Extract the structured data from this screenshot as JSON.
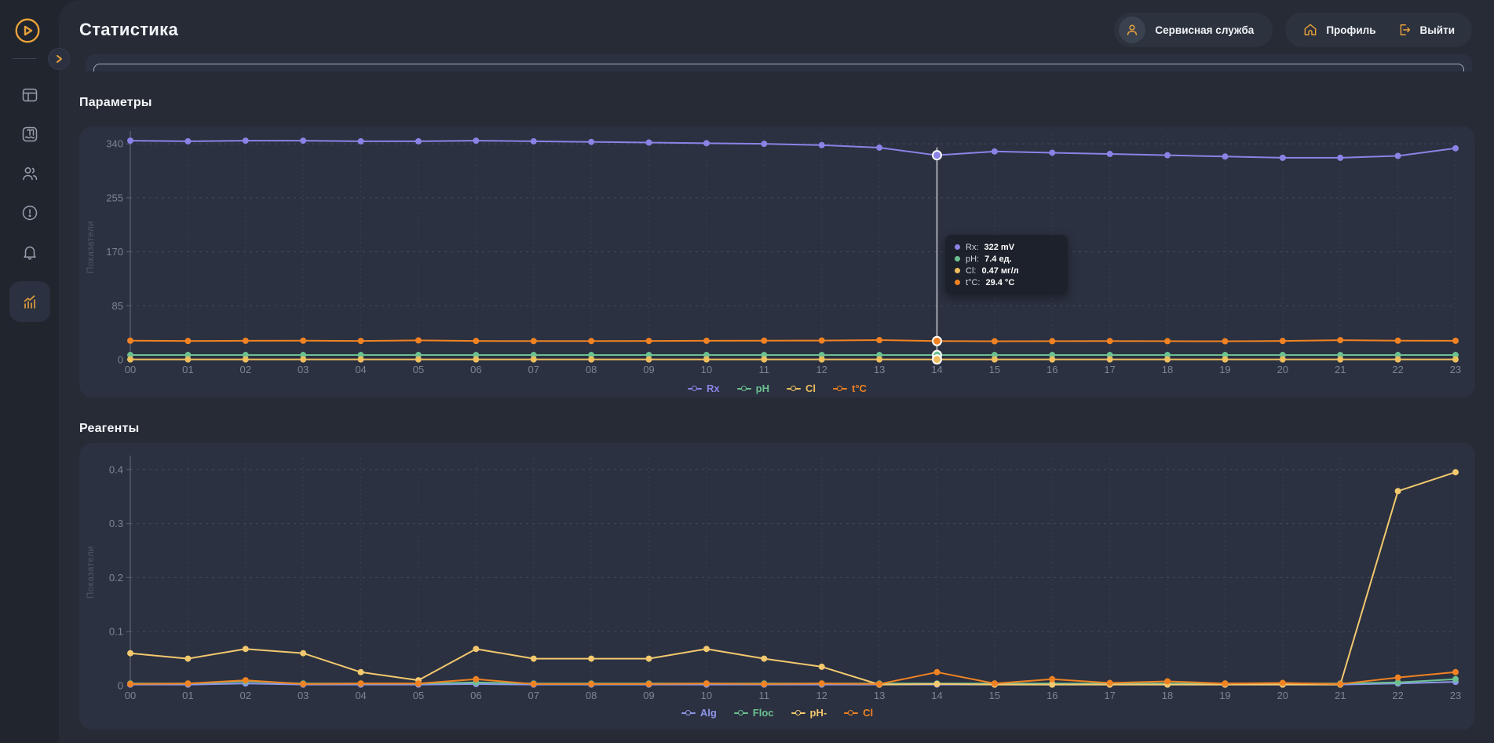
{
  "app": {
    "title": "Статистика"
  },
  "header": {
    "service_badge": {
      "label": "Сервисная служба",
      "icon": "user-icon"
    },
    "profile": {
      "label": "Профиль",
      "icon": "home-icon"
    },
    "logout": {
      "label": "Выйти",
      "icon": "logout-icon"
    }
  },
  "sidebar": {
    "logo_icon": "play-logo-icon",
    "expander_icon": "chevron-right-icon",
    "items": [
      {
        "icon": "dashboard-icon",
        "active": false
      },
      {
        "icon": "pool-icon",
        "active": false
      },
      {
        "icon": "users-icon",
        "active": false
      },
      {
        "icon": "alert-circle-icon",
        "active": false
      },
      {
        "icon": "notifications-bell-icon",
        "active": false
      },
      {
        "icon": "statistics-chart-icon",
        "active": true
      }
    ]
  },
  "sections": [
    {
      "title": "Параметры"
    },
    {
      "title": "Реагенты"
    }
  ],
  "tooltip": {
    "hour": "14",
    "rows": [
      {
        "color": "#8a83e6",
        "label": "Rx:",
        "value": "322 mV"
      },
      {
        "color": "#6cc191",
        "label": "pH:",
        "value": "7.4 ед."
      },
      {
        "color": "#edbd5e",
        "label": "Cl:",
        "value": "0.47 мг/л"
      },
      {
        "color": "#f08223",
        "label": "t°C:",
        "value": "29.4 °C"
      }
    ]
  },
  "colors": {
    "accent_orange": "#e9a23b",
    "page_bg": "#262b36",
    "sidebar_bg": "#20252e",
    "card_bg": "#2b3140",
    "tooltip_bg": "#1d212b",
    "grid": "#3c4350",
    "axis": "#565e6d",
    "tick_text": "#7c8494"
  },
  "chart_data": [
    {
      "type": "line",
      "name": "parameters",
      "title": "Параметры",
      "ylabel": "Показатели",
      "legend_position": "bottom",
      "grid": true,
      "x": [
        "00",
        "01",
        "02",
        "03",
        "04",
        "05",
        "06",
        "07",
        "08",
        "09",
        "10",
        "11",
        "12",
        "13",
        "14",
        "15",
        "16",
        "17",
        "18",
        "19",
        "20",
        "21",
        "22",
        "23"
      ],
      "yticks": [
        0,
        85,
        170,
        255,
        340
      ],
      "ylim": [
        0,
        355
      ],
      "highlight": {
        "index": 14
      },
      "series": [
        {
          "name": "Rx",
          "color": "#8a83e6",
          "values": [
            345,
            344,
            345,
            345,
            344,
            344,
            345,
            344,
            343,
            342,
            341,
            340,
            338,
            334,
            322,
            328,
            326,
            324,
            322,
            320,
            318,
            318,
            321,
            333
          ]
        },
        {
          "name": "pH",
          "color": "#6cc191",
          "values": [
            7.4,
            7.4,
            7.4,
            7.4,
            7.4,
            7.4,
            7.4,
            7.4,
            7.4,
            7.4,
            7.4,
            7.4,
            7.4,
            7.4,
            7.4,
            7.4,
            7.4,
            7.4,
            7.4,
            7.4,
            7.4,
            7.4,
            7.4,
            7.4
          ]
        },
        {
          "name": "Cl",
          "color": "#edbd5e",
          "values": [
            0.47,
            0.47,
            0.47,
            0.47,
            0.47,
            0.47,
            0.47,
            0.47,
            0.47,
            0.47,
            0.47,
            0.47,
            0.47,
            0.47,
            0.47,
            0.47,
            0.47,
            0.47,
            0.47,
            0.47,
            0.47,
            0.47,
            0.47,
            0.47
          ]
        },
        {
          "name": "t°C",
          "color": "#f08223",
          "values": [
            30,
            29.5,
            29.8,
            30,
            29.6,
            30.4,
            29.5,
            29.3,
            29.4,
            29.6,
            29.8,
            30,
            30.2,
            30.9,
            29.4,
            29,
            29.2,
            29.4,
            29.2,
            29,
            29.5,
            30.8,
            30,
            29.8
          ]
        }
      ]
    },
    {
      "type": "line",
      "name": "reagents",
      "title": "Реагенты",
      "ylabel": "Показатели",
      "legend_position": "bottom",
      "grid": true,
      "x": [
        "00",
        "01",
        "02",
        "03",
        "04",
        "05",
        "06",
        "07",
        "08",
        "09",
        "10",
        "11",
        "12",
        "13",
        "14",
        "15",
        "16",
        "17",
        "18",
        "19",
        "20",
        "21",
        "22",
        "23"
      ],
      "yticks": [
        0,
        0.1,
        0.2,
        0.3,
        0.4
      ],
      "ylim": [
        0,
        0.42
      ],
      "series": [
        {
          "name": "Alg",
          "color": "#8d96e8",
          "values": [
            0.002,
            0.002,
            0.004,
            0.002,
            0.002,
            0.002,
            0.003,
            0.002,
            0.002,
            0.002,
            0.002,
            0.002,
            0.002,
            0.002,
            0.002,
            0.002,
            0.002,
            0.002,
            0.002,
            0.002,
            0.002,
            0.002,
            0.004,
            0.007
          ]
        },
        {
          "name": "Floc",
          "color": "#6cc191",
          "values": [
            0.004,
            0.004,
            0.008,
            0.004,
            0.004,
            0.004,
            0.006,
            0.004,
            0.004,
            0.004,
            0.004,
            0.004,
            0.004,
            0.004,
            0.004,
            0.004,
            0.004,
            0.004,
            0.004,
            0.004,
            0.004,
            0.004,
            0.006,
            0.012
          ]
        },
        {
          "name": "pH-",
          "color": "#f3c86e",
          "values": [
            0.06,
            0.05,
            0.068,
            0.06,
            0.025,
            0.01,
            0.068,
            0.05,
            0.05,
            0.05,
            0.068,
            0.05,
            0.035,
            0.002,
            0.003,
            0.002,
            0.002,
            0.002,
            0.002,
            0.002,
            0.002,
            0.002,
            0.36,
            0.395
          ]
        },
        {
          "name": "Cl",
          "color": "#f08223",
          "values": [
            0.003,
            0.004,
            0.01,
            0.003,
            0.004,
            0.004,
            0.012,
            0.003,
            0.003,
            0.003,
            0.004,
            0.003,
            0.004,
            0.003,
            0.025,
            0.004,
            0.012,
            0.005,
            0.008,
            0.004,
            0.005,
            0.003,
            0.015,
            0.025
          ]
        }
      ]
    }
  ]
}
